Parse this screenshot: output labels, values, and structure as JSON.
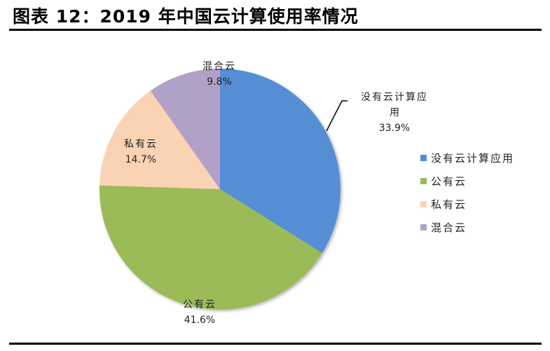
{
  "header": {
    "title": "图表 12：2019 年中国云计算使用率情况"
  },
  "chart_data": {
    "type": "pie",
    "title": "图表 12：2019 年中国云计算使用率情况",
    "categories": [
      "没有云计算应用",
      "公有云",
      "私有云",
      "混合云"
    ],
    "values": [
      33.9,
      41.6,
      14.7,
      9.8
    ],
    "unit": "%",
    "colors": [
      "#558ED5",
      "#9BBB59",
      "#FAD3B4",
      "#B2A1C7"
    ],
    "data_labels": [
      {
        "name_line1": "没有云计算应",
        "name_line2": "用",
        "value": "33.9%"
      },
      {
        "name_line1": "公有云",
        "value": "41.6%"
      },
      {
        "name_line1": "私有云",
        "value": "14.7%"
      },
      {
        "name_line1": "混合云",
        "value": "9.8%"
      }
    ],
    "legend_position": "right",
    "start_angle": "12 o'clock, clockwise"
  },
  "legend": {
    "items": [
      {
        "label": "没有云计算应用",
        "color": "#558ED5"
      },
      {
        "label": "公有云",
        "color": "#9BBB59"
      },
      {
        "label": "私有云",
        "color": "#FAD3B4"
      },
      {
        "label": "混合云",
        "color": "#B2A1C7"
      }
    ]
  }
}
